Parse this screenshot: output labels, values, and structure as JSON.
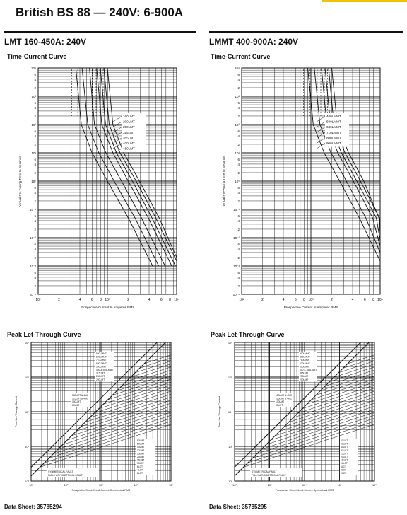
{
  "page": {
    "title": "British BS 88 — 240V:  6-900A",
    "accent_color": "#f2c200"
  },
  "left": {
    "section_title": "LMT 160-450A: 240V",
    "tcc_title": "Time-Current Curve",
    "plt_title": "Peak Let-Through Curve",
    "data_sheet": "Data Sheet: 35785294"
  },
  "right": {
    "section_title": "LMMT 400-900A: 240V",
    "tcc_title": "Time-Current Curve",
    "plt_title": "Peak Let-Through Curve",
    "data_sheet": "Data Sheet: 35785295"
  },
  "chart_data": [
    {
      "type": "line",
      "title": "Time-Current Curve",
      "xlabel": "Prospective Current In Amperes RMS",
      "ylabel": "Virtual Pre-Arcing Time In Seconds",
      "x_scale": "log",
      "y_scale": "log",
      "x_ticks": [
        "10²",
        "2",
        "4",
        "6",
        "8",
        "10³",
        "2",
        "4",
        "6",
        "8",
        "10⁴"
      ],
      "y_ticks": [
        "10⁴",
        "6",
        "4",
        "2",
        "10³",
        "6",
        "4",
        "2",
        "10²",
        "6",
        "4",
        "2",
        "10¹",
        "6",
        "4",
        "2",
        "10⁰",
        "6",
        "4",
        "2",
        "10⁻¹",
        "6",
        "4",
        "2",
        "10⁻²",
        "6",
        "4",
        "2",
        "10⁻³",
        "6",
        "4",
        "2",
        "10⁻⁴"
      ],
      "xlim": [
        100,
        10000
      ],
      "ylim": [
        0.0001,
        10000
      ],
      "grid": true,
      "series": [
        {
          "name": "160LMT",
          "x": [
            350,
            420,
            600,
            1000,
            2000,
            4500
          ],
          "y": [
            10000,
            100,
            10,
            1,
            0.05,
            0.001
          ]
        },
        {
          "name": "200LMT",
          "x": [
            430,
            520,
            750,
            1250,
            2500,
            5500
          ],
          "y": [
            10000,
            100,
            10,
            1,
            0.05,
            0.001
          ]
        },
        {
          "name": "250LMT",
          "x": [
            550,
            650,
            950,
            1600,
            3100,
            6800
          ],
          "y": [
            10000,
            100,
            10,
            1,
            0.05,
            0.001
          ]
        },
        {
          "name": "315LMT",
          "x": [
            700,
            830,
            1200,
            2000,
            3900,
            8500
          ],
          "y": [
            10000,
            100,
            10,
            1,
            0.05,
            0.001
          ]
        },
        {
          "name": "355LMT",
          "x": [
            790,
            940,
            1350,
            2300,
            4400,
            9600
          ],
          "y": [
            10000,
            100,
            10,
            1,
            0.05,
            0.001
          ]
        },
        {
          "name": "400LMT",
          "x": [
            890,
            1060,
            1520,
            2600,
            5000,
            10000
          ],
          "y": [
            10000,
            100,
            10,
            1,
            0.05,
            0.0015
          ]
        },
        {
          "name": "450LMT",
          "x": [
            1000,
            1200,
            1720,
            2900,
            5600,
            10000
          ],
          "y": [
            10000,
            100,
            10,
            1,
            0.05,
            0.002
          ]
        }
      ]
    },
    {
      "type": "line",
      "title": "Time-Current Curve",
      "xlabel": "Prospective Current In Amperes RMS",
      "ylabel": "Virtual Pre-Arcing Time In Seconds",
      "x_scale": "log",
      "y_scale": "log",
      "x_ticks": [
        "10²",
        "2",
        "4",
        "6",
        "8",
        "10³",
        "2",
        "4",
        "6",
        "8",
        "10⁴"
      ],
      "y_ticks": [
        "10⁴",
        "6",
        "4",
        "2",
        "10³",
        "6",
        "4",
        "2",
        "10²",
        "6",
        "4",
        "2",
        "10¹",
        "6",
        "4",
        "2",
        "10⁰",
        "6",
        "4",
        "2",
        "10⁻¹",
        "6",
        "4",
        "2",
        "10⁻²",
        "6",
        "4",
        "2",
        "10⁻³",
        "6",
        "4",
        "2",
        "10⁻⁴"
      ],
      "xlim": [
        100,
        10000
      ],
      "ylim": [
        0.0001,
        10000
      ],
      "grid": true,
      "series": [
        {
          "name": "400LMMT",
          "x": [
            900,
            1080,
            1550,
            2600,
            5000,
            10000
          ],
          "y": [
            10000,
            100,
            10,
            1,
            0.05,
            0.0015
          ]
        },
        {
          "name": "500LMMT",
          "x": [
            1120,
            1350,
            1950,
            3250,
            6200,
            10000
          ],
          "y": [
            10000,
            100,
            10,
            1,
            0.05,
            0.003
          ]
        },
        {
          "name": "630LMMT",
          "x": [
            1420,
            1700,
            2450,
            4100,
            7800,
            10000
          ],
          "y": [
            10000,
            100,
            10,
            1,
            0.05,
            0.005
          ]
        },
        {
          "name": "710LMMT",
          "x": [
            1600,
            1920,
            2750,
            4600,
            8800,
            10000
          ],
          "y": [
            10000,
            100,
            10,
            1,
            0.05,
            0.008
          ]
        },
        {
          "name": "800LMMT",
          "x": [
            1800,
            2150,
            3100,
            5200,
            9800,
            10000
          ],
          "y": [
            10000,
            100,
            10,
            1,
            0.05,
            0.01
          ]
        },
        {
          "name": "900LMMT",
          "x": [
            2000,
            2400,
            3500,
            5800,
            10000
          ],
          "y": [
            10000,
            100,
            10,
            1,
            0.04
          ]
        }
      ]
    },
    {
      "type": "line",
      "title": "Peak Let-Through Curve",
      "xlabel": "Prospective Short-Circuit Current-Symmetrical RMS",
      "ylabel": "Peak Let-Through Current",
      "x_scale": "log",
      "y_scale": "log",
      "xlim": [
        100,
        1000000
      ],
      "ylim": [
        100,
        1000000
      ],
      "grid": true,
      "annotations": [
        "SYMMETRICAL FAULT",
        "FULLY ASYMMETRICAL FAULT"
      ],
      "legend_top": [
        "900LMMT",
        "800LMMT",
        "710LMMT",
        "630LMMT",
        "500LMMT",
        "400 & 355LMMT",
        "315LMT",
        "250LMT",
        "200LMT"
      ],
      "legend_mid": [
        "160LMT & 4MC",
        "125LMT & 4MC",
        "100LMT",
        "80LMT"
      ],
      "legend_bottom": [
        "63LMT",
        "50LMT",
        "40LMT",
        "32LMT",
        "25LMT",
        "20LMT",
        "16LMT",
        "10LCT",
        "6LCT",
        "4LCT",
        "2LCT"
      ]
    },
    {
      "type": "line",
      "title": "Peak Let-Through Curve",
      "xlabel": "Prospective Short-Circuit Current-Symmetrical RMS",
      "ylabel": "Peak Let-Through Current",
      "x_scale": "log",
      "y_scale": "log",
      "xlim": [
        100,
        1000000
      ],
      "ylim": [
        100,
        1000000
      ],
      "grid": true,
      "annotations": [
        "SYMMETRICAL FAULT",
        "FULLY ASYMMETRICAL FAULT"
      ],
      "legend_top": [
        "900LMMT",
        "800LMMT",
        "710LMMT",
        "630LMMT",
        "500LMMT",
        "400 & 355LMMT",
        "315LMT",
        "250LMT",
        "200LMT"
      ],
      "legend_mid": [
        "160LMT & 4MC",
        "125LMT & 4MC",
        "100LMT",
        "80LMT"
      ],
      "legend_bottom": [
        "63LMT",
        "50LMT",
        "40LMT",
        "32LMT",
        "25LMT",
        "20LMT",
        "16LMT",
        "10LCT",
        "6LCT",
        "4LCT",
        "2LCT"
      ]
    }
  ]
}
